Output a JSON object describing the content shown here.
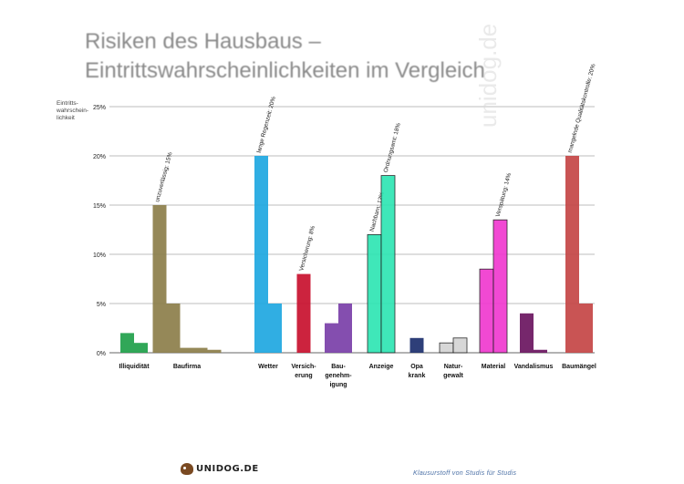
{
  "title_lines": [
    "Risiken des Hausbaus –",
    "Eintrittswahrscheinlichkeiten im Vergleich"
  ],
  "footer_text": "Klausurstoff von Studis für Studis",
  "logo_text": "UNIDOG.DE",
  "watermark_text": "unidog.de",
  "chart_data": {
    "type": "bar",
    "y_axis_label": "Eintritts-wahrschein-lichkeit",
    "y_ticks": [
      "0%",
      "5%",
      "10%",
      "15%",
      "20%",
      "25%"
    ],
    "ylim": [
      0,
      25
    ],
    "grid": true,
    "categories": [
      "Illiquidität",
      "Baufirma",
      "Wetter",
      "Versicherung",
      "Baugenehmigung",
      "Anzeige",
      "Opa krank",
      "Naturgewalt",
      "Material",
      "Vandalismus",
      "Baumängel"
    ],
    "category_label_lines": [
      [
        "Illiquidität"
      ],
      [
        "Baufirma"
      ],
      [
        "Wetter"
      ],
      [
        "Versich-",
        "erung"
      ],
      [
        "Bau-",
        "genehm-",
        "igung"
      ],
      [
        "Anzeige"
      ],
      [
        "Opa",
        "krank"
      ],
      [
        "Natur-",
        "gewalt"
      ],
      [
        "Material"
      ],
      [
        "Vandalismus"
      ],
      [
        "Baumängel"
      ]
    ],
    "groups": [
      {
        "color": "#1fa04a",
        "bars": [
          {
            "value": 2,
            "label": ""
          },
          {
            "value": 1,
            "label": ""
          }
        ]
      },
      {
        "color": "#8c7e4a",
        "bars": [
          {
            "value": 15,
            "label": "unzuverlässig: 15%"
          },
          {
            "value": 5,
            "label": ""
          },
          {
            "value": 0.5,
            "label": ""
          },
          {
            "value": 0.5,
            "label": ""
          },
          {
            "value": 0.3,
            "label": ""
          }
        ]
      },
      {
        "color": "#1ea7e1",
        "bars": [
          {
            "value": 20,
            "label": "lange Regenzeit: 20%"
          },
          {
            "value": 5,
            "label": ""
          }
        ]
      },
      {
        "color": "#c8102e",
        "bars": [
          {
            "value": 8,
            "label": "Versicherung: 8%"
          }
        ]
      },
      {
        "color": "#7a3fa8",
        "bars": [
          {
            "value": 3,
            "label": ""
          },
          {
            "value": 5,
            "label": ""
          }
        ]
      },
      {
        "color": "#2fe6b4",
        "bars": [
          {
            "value": 12,
            "label": "Nachbarn: 12%"
          },
          {
            "value": 18,
            "label": "Ordnungsamt: 18%"
          }
        ]
      },
      {
        "color": "#1c2f6e",
        "bars": [
          {
            "value": 1.5,
            "label": ""
          }
        ]
      },
      {
        "color": "#d4d4d4",
        "bars": [
          {
            "value": 1,
            "label": ""
          },
          {
            "value": 1.5,
            "label": ""
          }
        ]
      },
      {
        "color": "#f03ad0",
        "bars": [
          {
            "value": 8.5,
            "label": ""
          },
          {
            "value": 13.5,
            "label": "Verspätung: 14%"
          }
        ]
      },
      {
        "color": "#6a1560",
        "bars": [
          {
            "value": 4,
            "label": ""
          },
          {
            "value": 0.3,
            "label": ""
          }
        ]
      },
      {
        "color": "#c44545",
        "bars": [
          {
            "value": 20,
            "label": "mangelnde Qualitätskontrolle: 20%"
          },
          {
            "value": 5,
            "label": ""
          }
        ]
      }
    ]
  }
}
